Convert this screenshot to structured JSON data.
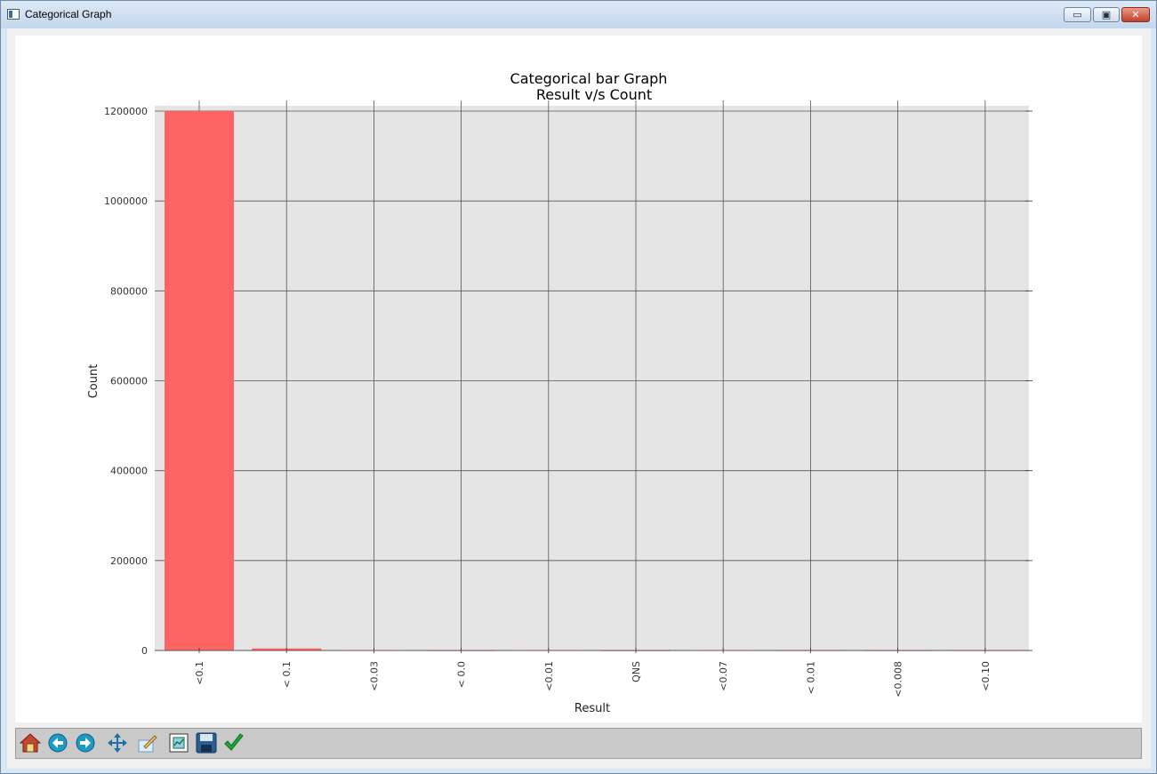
{
  "window": {
    "title": "Categorical Graph",
    "controls": {
      "minimize": "▭",
      "maximize": "▣",
      "close": "✕"
    }
  },
  "colors": {
    "bar": "#ff6464",
    "plot_bg": "#e5e5e5",
    "grid": "#555555"
  },
  "toolbar": {
    "tools": [
      {
        "name": "home-icon"
      },
      {
        "name": "back-arrow-icon"
      },
      {
        "name": "forward-arrow-icon"
      },
      {
        "name": "pan-icon"
      },
      {
        "name": "zoom-icon"
      },
      {
        "name": "configure-subplots-icon"
      },
      {
        "name": "save-icon"
      },
      {
        "name": "edit-check-icon"
      }
    ]
  },
  "chart_data": {
    "type": "bar",
    "title": "Categorical bar Graph",
    "subtitle": "Result v/s Count",
    "xlabel": "Result",
    "ylabel": "Count",
    "categories": [
      "<0.1",
      "< 0.1",
      "<0.03",
      "< 0.0",
      "<0.01",
      "QNS",
      "<0.07",
      "< 0.01",
      "<0.008",
      "<0.10"
    ],
    "values": [
      1200000,
      4500,
      800,
      300,
      600,
      200,
      600,
      400,
      300,
      400
    ],
    "ylim": [
      0,
      1200000
    ],
    "yticks": [
      0,
      200000,
      400000,
      600000,
      800000,
      1000000,
      1200000
    ],
    "ytick_labels": [
      "0",
      "200000",
      "400000",
      "600000",
      "800000",
      "1000000",
      "1200000"
    ],
    "grid": true
  }
}
